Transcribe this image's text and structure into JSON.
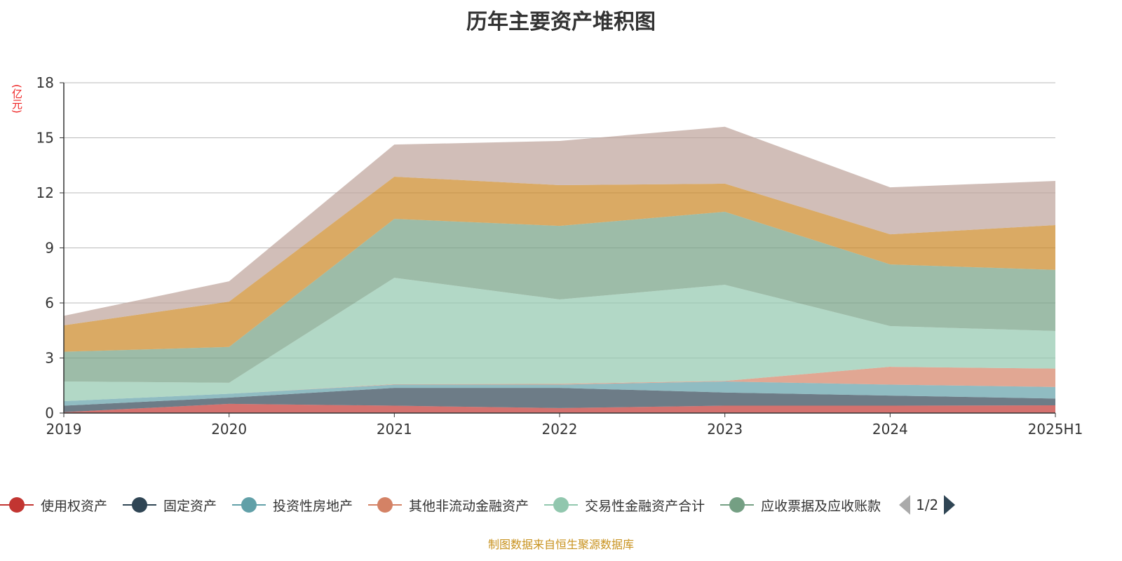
{
  "chart_data": {
    "type": "area",
    "stacked": true,
    "title": "历年主要资产堆积图",
    "ylabel": "(亿元)",
    "xlabel": "",
    "ylim": [
      0,
      18
    ],
    "yticks": [
      0,
      3,
      6,
      9,
      12,
      15,
      18
    ],
    "grid": true,
    "categories": [
      "2019",
      "2020",
      "2021",
      "2022",
      "2023",
      "2024",
      "2025H1"
    ],
    "series": [
      {
        "name": "使用权资产",
        "color": "#c23531",
        "values": [
          0.05,
          0.5,
          0.4,
          0.27,
          0.4,
          0.4,
          0.42
        ]
      },
      {
        "name": "固定资产",
        "color": "#2f4554",
        "values": [
          0.35,
          0.34,
          0.97,
          1.1,
          0.72,
          0.55,
          0.37
        ]
      },
      {
        "name": "投资性房地产",
        "color": "#61a0a8",
        "values": [
          0.25,
          0.21,
          0.18,
          0.18,
          0.6,
          0.6,
          0.63
        ]
      },
      {
        "name": "其他非流动金融资产",
        "color": "#d48265",
        "values": [
          0,
          0,
          0.02,
          0.04,
          0.03,
          0.97,
          1.0
        ]
      },
      {
        "name": "交易性金融资产合计",
        "color": "#91c7ae",
        "values": [
          1.07,
          0.6,
          5.8,
          4.6,
          5.24,
          2.22,
          2.05
        ]
      },
      {
        "name": "应收票据及应收账款",
        "color": "#749f83",
        "values": [
          1.62,
          1.95,
          3.21,
          4.01,
          3.98,
          3.36,
          3.33
        ]
      },
      {
        "name": "",
        "color": "#ca8622",
        "values": [
          1.44,
          2.47,
          2.3,
          2.22,
          1.53,
          1.64,
          2.44
        ]
      },
      {
        "name": "",
        "color": "#bda29a",
        "values": [
          0.52,
          1.11,
          1.75,
          2.41,
          3.1,
          2.56,
          2.41
        ]
      }
    ],
    "legend_position": "bottom",
    "legend_page": "1/2"
  },
  "source": "制图数据来自恒生聚源数据库"
}
